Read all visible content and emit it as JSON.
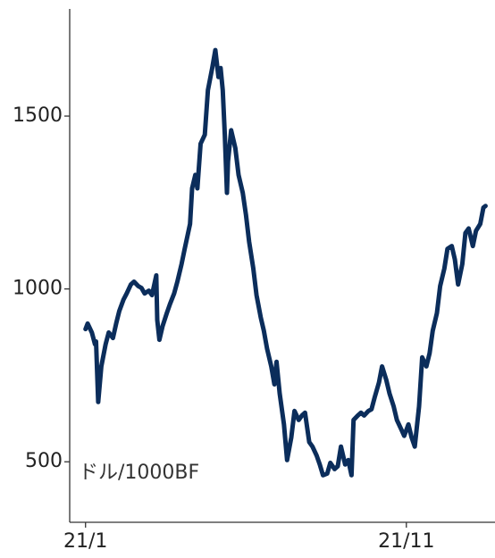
{
  "chart_data": {
    "type": "line",
    "annotation": "ドル/1000BF",
    "x": [
      0,
      2,
      6,
      9,
      10,
      12,
      15,
      19,
      22,
      26,
      29,
      32,
      36,
      39,
      43,
      46,
      50,
      53,
      56,
      60,
      63,
      67,
      68,
      70,
      73,
      77,
      80,
      84,
      87,
      91,
      94,
      99,
      101,
      104,
      106,
      109,
      113,
      116,
      120,
      123,
      126,
      128,
      130,
      132,
      134,
      135,
      138,
      142,
      145,
      149,
      152,
      155,
      159,
      162,
      166,
      169,
      172,
      176,
      179,
      181,
      184,
      188,
      191,
      195,
      198,
      202,
      205,
      208,
      212,
      215,
      219,
      222,
      225,
      229,
      232,
      236,
      239,
      242,
      246,
      249,
      252,
      254,
      258,
      261,
      264,
      268,
      271,
      274,
      278,
      281,
      285,
      288,
      292,
      295,
      299,
      302,
      306,
      309,
      312,
      316,
      319,
      323,
      326,
      329,
      333,
      336,
      340,
      343,
      347,
      350,
      353,
      357,
      360,
      363,
      367,
      370,
      374,
      377,
      379
    ],
    "series": [
      {
        "color": "#0b2d5b",
        "values": [
          884,
          900,
          874,
          840,
          848,
          673,
          776,
          840,
          874,
          858,
          900,
          936,
          969,
          987,
          1013,
          1021,
          1008,
          1003,
          987,
          995,
          982,
          1039,
          910,
          853,
          892,
          930,
          956,
          987,
          1021,
          1072,
          1116,
          1188,
          1291,
          1330,
          1291,
          1420,
          1446,
          1575,
          1639,
          1691,
          1613,
          1639,
          1575,
          1446,
          1278,
          1369,
          1459,
          1407,
          1330,
          1278,
          1214,
          1137,
          1059,
          982,
          918,
          879,
          827,
          776,
          724,
          789,
          698,
          608,
          505,
          570,
          647,
          621,
          634,
          642,
          557,
          544,
          518,
          492,
          461,
          466,
          497,
          479,
          487,
          544,
          492,
          505,
          461,
          621,
          634,
          642,
          634,
          647,
          652,
          686,
          729,
          776,
          737,
          698,
          660,
          621,
          595,
          575,
          608,
          570,
          544,
          660,
          802,
          776,
          814,
          879,
          930,
          1008,
          1059,
          1116,
          1124,
          1085,
          1013,
          1072,
          1162,
          1175,
          1124,
          1168,
          1188,
          1235,
          1240
        ]
      }
    ],
    "xlim": [
      -15,
      388
    ],
    "xticks": [
      {
        "value": 0,
        "label": "21/1"
      },
      {
        "value": 304,
        "label": "21/11"
      }
    ],
    "ylim": [
      325,
      1810
    ],
    "yticks": [
      500,
      1000,
      1500
    ]
  }
}
